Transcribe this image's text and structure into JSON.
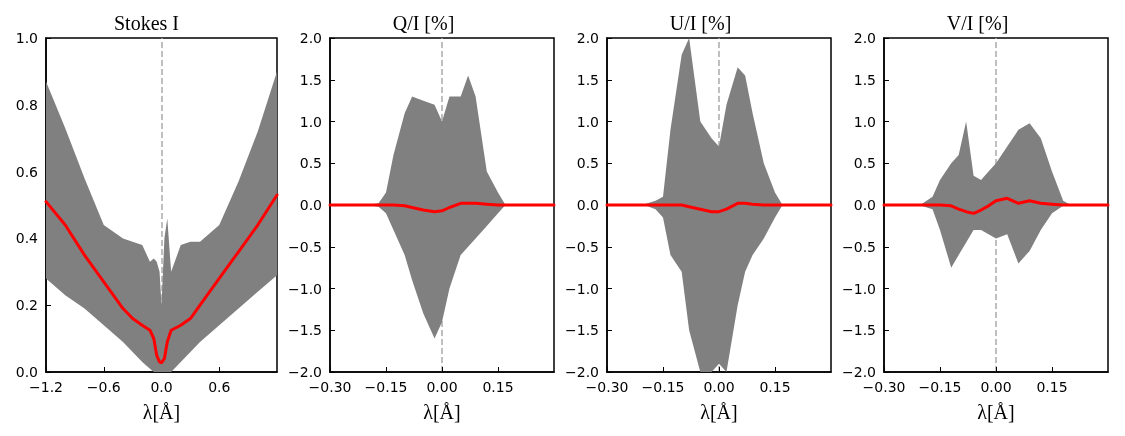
{
  "chart_data": [
    {
      "type": "line",
      "title": "Stokes I",
      "xlabel": "λ[Å]",
      "x": [
        -1.2,
        -1.0,
        -0.8,
        -0.6,
        -0.4,
        -0.3,
        -0.2,
        -0.12,
        -0.08,
        -0.05,
        -0.02,
        0,
        0.03,
        0.06,
        0.1,
        0.2,
        0.3,
        0.4,
        0.6,
        0.8,
        1.0,
        1.2
      ],
      "series": [
        {
          "color": "#ff0000",
          "values": [
            0.51,
            0.44,
            0.35,
            0.27,
            0.19,
            0.16,
            0.14,
            0.125,
            0.1,
            0.05,
            0.03,
            0.028,
            0.04,
            0.09,
            0.125,
            0.14,
            0.16,
            0.2,
            0.28,
            0.36,
            0.44,
            0.53
          ],
          "lower": [
            0.28,
            0.23,
            0.19,
            0.14,
            0.09,
            0.06,
            0.03,
            0.01,
            0,
            0,
            0,
            0,
            0,
            0,
            0,
            0.03,
            0.06,
            0.09,
            0.14,
            0.19,
            0.24,
            0.29
          ],
          "upper": [
            0.87,
            0.73,
            0.58,
            0.44,
            0.4,
            0.39,
            0.38,
            0.33,
            0.34,
            0.33,
            0.3,
            0.2,
            0.4,
            0.46,
            0.3,
            0.38,
            0.39,
            0.39,
            0.44,
            0.57,
            0.72,
            0.9
          ]
        }
      ],
      "xlim": [
        -1.2,
        1.2
      ],
      "xticks": [
        {
          "value": -1.2,
          "label": "−1.2"
        },
        {
          "value": -0.6,
          "label": "−0.6"
        },
        {
          "value": 0,
          "label": "0.0"
        },
        {
          "value": 0.6,
          "label": "0.6"
        }
      ],
      "ylim": [
        0,
        1
      ],
      "yticks": [
        {
          "value": 0,
          "label": "0.0"
        },
        {
          "value": 0.2,
          "label": "0.2"
        },
        {
          "value": 0.4,
          "label": "0.4"
        },
        {
          "value": 0.6,
          "label": "0.6"
        },
        {
          "value": 0.8,
          "label": "0.8"
        },
        {
          "value": 1,
          "label": "1.0"
        }
      ],
      "ref_lines": [
        {
          "axis": "x",
          "value": 0,
          "color": "#aaaaaa",
          "line_style": "dashed"
        }
      ],
      "grid": false,
      "marker": "none",
      "line_style": "solid"
    },
    {
      "type": "line",
      "title": "Q/I [%]",
      "xlabel": "λ[Å]",
      "x": [
        -0.3,
        -0.2,
        -0.17,
        -0.15,
        -0.13,
        -0.1,
        -0.08,
        -0.05,
        -0.02,
        0,
        0.02,
        0.05,
        0.07,
        0.09,
        0.12,
        0.15,
        0.17,
        0.2,
        0.3
      ],
      "series": [
        {
          "color": "#ff0000",
          "values": [
            0,
            0,
            0,
            0,
            0,
            -0.01,
            -0.03,
            -0.06,
            -0.08,
            -0.07,
            -0.03,
            0.02,
            0.02,
            0.02,
            0.01,
            0,
            0,
            0,
            0
          ],
          "lower": [
            0,
            0,
            -0.02,
            -0.1,
            -0.3,
            -0.6,
            -0.9,
            -1.3,
            -1.6,
            -1.4,
            -1.0,
            -0.6,
            -0.5,
            -0.4,
            -0.25,
            -0.1,
            0,
            0,
            0
          ],
          "upper": [
            0,
            0,
            0.02,
            0.15,
            0.6,
            1.1,
            1.3,
            1.25,
            1.2,
            1.0,
            1.3,
            1.3,
            1.55,
            1.3,
            0.4,
            0.15,
            0,
            0,
            0
          ]
        }
      ],
      "xlim": [
        -0.3,
        0.3
      ],
      "xticks": [
        {
          "value": -0.3,
          "label": "−0.30"
        },
        {
          "value": -0.15,
          "label": "−0.15"
        },
        {
          "value": 0,
          "label": "0.00"
        },
        {
          "value": 0.15,
          "label": "0.15"
        }
      ],
      "ylim": [
        -2,
        2
      ],
      "yticks": [
        {
          "value": -2,
          "label": "−2.0"
        },
        {
          "value": -1.5,
          "label": "−1.5"
        },
        {
          "value": -1,
          "label": "−1.0"
        },
        {
          "value": -0.5,
          "label": "−0.5"
        },
        {
          "value": 0,
          "label": "0.0"
        },
        {
          "value": 0.5,
          "label": "0.5"
        },
        {
          "value": 1,
          "label": "1.0"
        },
        {
          "value": 1.5,
          "label": "1.5"
        },
        {
          "value": 2,
          "label": "2.0"
        }
      ],
      "ref_lines": [
        {
          "axis": "x",
          "value": 0,
          "color": "#aaaaaa",
          "line_style": "dashed"
        }
      ],
      "grid": false,
      "marker": "none",
      "line_style": "solid"
    },
    {
      "type": "line",
      "title": "U/I [%]",
      "xlabel": "λ[Å]",
      "x": [
        -0.3,
        -0.2,
        -0.17,
        -0.15,
        -0.13,
        -0.1,
        -0.08,
        -0.05,
        -0.02,
        0,
        0.02,
        0.05,
        0.07,
        0.09,
        0.12,
        0.15,
        0.17,
        0.2,
        0.3
      ],
      "series": [
        {
          "color": "#ff0000",
          "values": [
            0,
            0,
            0,
            0,
            0,
            0,
            -0.02,
            -0.05,
            -0.08,
            -0.08,
            -0.05,
            0.02,
            0.02,
            0.01,
            0,
            0,
            0,
            0,
            0
          ],
          "lower": [
            0,
            0,
            -0.05,
            -0.15,
            -0.6,
            -0.8,
            -1.5,
            -2.0,
            -2.0,
            -1.9,
            -2.0,
            -1.2,
            -0.8,
            -0.6,
            -0.4,
            -0.15,
            0,
            0,
            0
          ],
          "upper": [
            0,
            0.01,
            0.05,
            0.1,
            0.9,
            1.8,
            2.0,
            1.0,
            0.8,
            0.7,
            1.2,
            1.65,
            1.55,
            1.1,
            0.5,
            0.15,
            0,
            0,
            0
          ]
        }
      ],
      "xlim": [
        -0.3,
        0.3
      ],
      "xticks": [
        {
          "value": -0.3,
          "label": "−0.30"
        },
        {
          "value": -0.15,
          "label": "−0.15"
        },
        {
          "value": 0,
          "label": "0.00"
        },
        {
          "value": 0.15,
          "label": "0.15"
        }
      ],
      "ylim": [
        -2,
        2
      ],
      "yticks": [
        {
          "value": -2,
          "label": "−2.0"
        },
        {
          "value": -1.5,
          "label": "−1.5"
        },
        {
          "value": -1,
          "label": "−1.0"
        },
        {
          "value": -0.5,
          "label": "−0.5"
        },
        {
          "value": 0,
          "label": "0.0"
        },
        {
          "value": 0.5,
          "label": "0.5"
        },
        {
          "value": 1,
          "label": "1.0"
        },
        {
          "value": 1.5,
          "label": "1.5"
        },
        {
          "value": 2,
          "label": "2.0"
        }
      ],
      "ref_lines": [
        {
          "axis": "x",
          "value": 0,
          "color": "#aaaaaa",
          "line_style": "dashed"
        }
      ],
      "grid": false,
      "marker": "none",
      "line_style": "solid"
    },
    {
      "type": "line",
      "title": "V/I [%]",
      "xlabel": "λ[Å]",
      "x": [
        -0.3,
        -0.2,
        -0.17,
        -0.15,
        -0.12,
        -0.1,
        -0.08,
        -0.06,
        -0.04,
        -0.02,
        0,
        0.03,
        0.06,
        0.09,
        0.12,
        0.15,
        0.18,
        0.2,
        0.3
      ],
      "series": [
        {
          "color": "#ff0000",
          "values": [
            0,
            0,
            0,
            0,
            -0.01,
            -0.05,
            -0.08,
            -0.1,
            -0.06,
            -0.01,
            0.05,
            0.08,
            0.02,
            0.05,
            0.02,
            0.01,
            0,
            0,
            0
          ],
          "lower": [
            0,
            -0.01,
            -0.05,
            -0.3,
            -0.75,
            -0.6,
            -0.45,
            -0.3,
            -0.3,
            -0.35,
            -0.4,
            -0.35,
            -0.7,
            -0.55,
            -0.3,
            -0.1,
            -0.01,
            0,
            0
          ],
          "upper": [
            0,
            0.01,
            0.1,
            0.3,
            0.5,
            0.6,
            1.0,
            0.35,
            0.3,
            0.4,
            0.5,
            0.7,
            0.9,
            0.98,
            0.8,
            0.4,
            0.05,
            0,
            0
          ]
        }
      ],
      "xlim": [
        -0.3,
        0.3
      ],
      "xticks": [
        {
          "value": -0.3,
          "label": "−0.30"
        },
        {
          "value": -0.15,
          "label": "−0.15"
        },
        {
          "value": 0,
          "label": "0.00"
        },
        {
          "value": 0.15,
          "label": "0.15"
        }
      ],
      "ylim": [
        -2,
        2
      ],
      "yticks": [
        {
          "value": -2,
          "label": "−2.0"
        },
        {
          "value": -1.5,
          "label": "−1.5"
        },
        {
          "value": -1,
          "label": "−1.0"
        },
        {
          "value": -0.5,
          "label": "−0.5"
        },
        {
          "value": 0,
          "label": "0.0"
        },
        {
          "value": 0.5,
          "label": "0.5"
        },
        {
          "value": 1,
          "label": "1.0"
        },
        {
          "value": 1.5,
          "label": "1.5"
        },
        {
          "value": 2,
          "label": "2.0"
        }
      ],
      "ref_lines": [
        {
          "axis": "x",
          "value": 0,
          "color": "#aaaaaa",
          "line_style": "dashed"
        }
      ],
      "grid": false,
      "marker": "none",
      "line_style": "solid"
    }
  ]
}
